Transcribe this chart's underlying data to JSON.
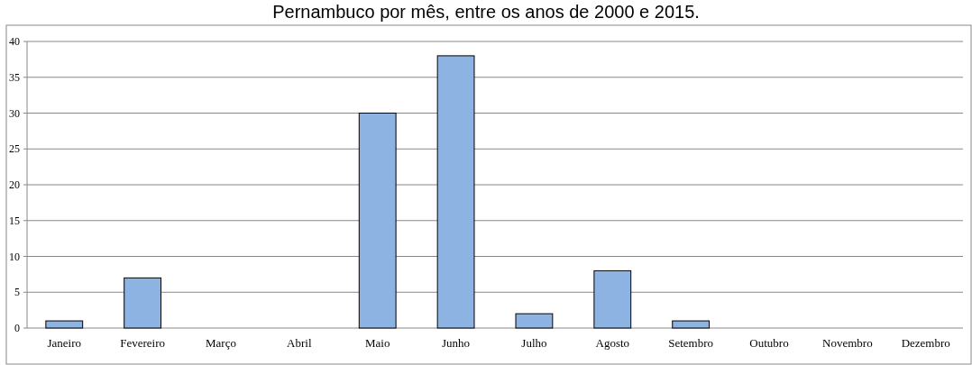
{
  "chart_data": {
    "type": "bar",
    "title": "Pernambuco por mês, entre os anos de 2000 e 2015.",
    "categories": [
      "Janeiro",
      "Fevereiro",
      "Março",
      "Abril",
      "Maio",
      "Junho",
      "Julho",
      "Agosto",
      "Setembro",
      "Outubro",
      "Novembro",
      "Dezembro"
    ],
    "values": [
      1,
      7,
      0,
      0,
      30,
      38,
      2,
      8,
      1,
      0,
      0,
      0
    ],
    "color": "#8db3e2",
    "ylim": [
      0,
      40
    ],
    "yticks": [
      0,
      5,
      10,
      15,
      20,
      25,
      30,
      35,
      40
    ],
    "grid": "y"
  }
}
